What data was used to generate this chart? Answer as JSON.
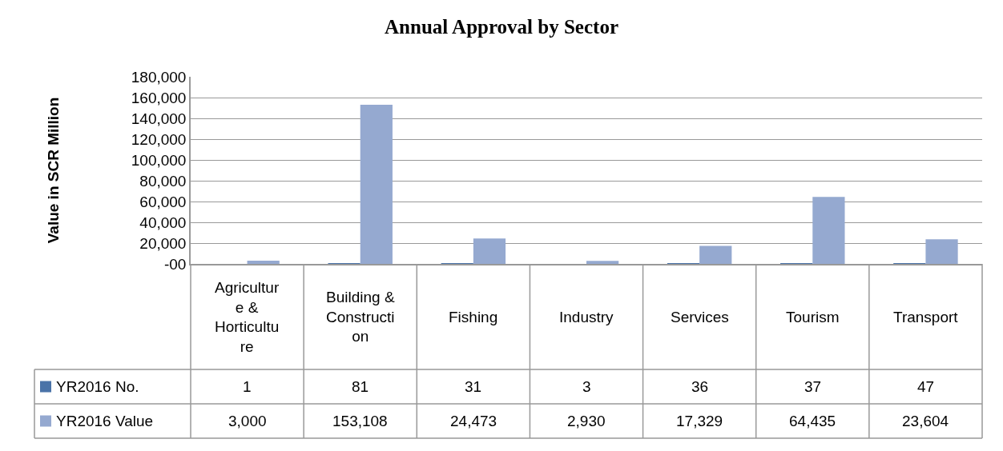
{
  "chart_data": {
    "type": "bar",
    "title": "Annual Approval by Sector",
    "ylabel": "Value in SCR Million",
    "categories": [
      "Agriculture & Horticulture",
      "Building & Construction",
      "Fishing",
      "Industry",
      "Services",
      "Tourism",
      "Transport"
    ],
    "series": [
      {
        "name": "YR2016 No.",
        "color": "#4a73a8",
        "values": [
          1,
          81,
          31,
          3,
          36,
          37,
          47
        ],
        "value_labels": [
          "1",
          "81",
          "31",
          "3",
          "36",
          "37",
          "47"
        ]
      },
      {
        "name": "YR2016 Value",
        "color": "#95a9d0",
        "values": [
          3000,
          153108,
          24473,
          2930,
          17329,
          64435,
          23604
        ],
        "value_labels": [
          "3,000",
          "153,108",
          "24,473",
          "2,930",
          "17,329",
          "64,435",
          "23,604"
        ]
      }
    ],
    "ylim": [
      0,
      180000
    ],
    "yticks": [
      {
        "value": 0,
        "label": "-00"
      },
      {
        "value": 20000,
        "label": "20,000"
      },
      {
        "value": 40000,
        "label": "40,000"
      },
      {
        "value": 60000,
        "label": "60,000"
      },
      {
        "value": 80000,
        "label": "80,000"
      },
      {
        "value": 100000,
        "label": "100,000"
      },
      {
        "value": 120000,
        "label": "120,000"
      },
      {
        "value": 140000,
        "label": "140,000"
      },
      {
        "value": 160000,
        "label": "160,000"
      },
      {
        "value": 180000,
        "label": "180,000"
      }
    ],
    "grid": "y",
    "legend": "bottom left"
  }
}
